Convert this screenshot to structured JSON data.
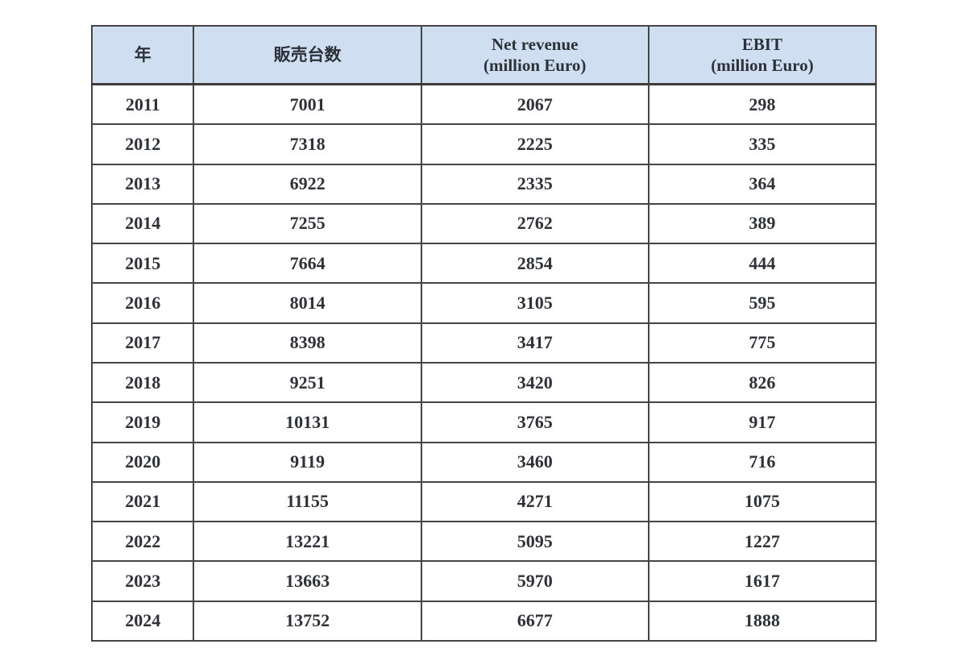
{
  "table": {
    "columns": [
      {
        "label": "年",
        "sub": ""
      },
      {
        "label": "販売台数",
        "sub": ""
      },
      {
        "label": "Net revenue",
        "sub": "(million Euro)"
      },
      {
        "label": "EBIT",
        "sub": "(million Euro)"
      }
    ],
    "rows": [
      {
        "cells": [
          "2011",
          "7001",
          "2067",
          "298"
        ]
      },
      {
        "cells": [
          "2012",
          "7318",
          "2225",
          "335"
        ]
      },
      {
        "cells": [
          "2013",
          "6922",
          "2335",
          "364"
        ]
      },
      {
        "cells": [
          "2014",
          "7255",
          "2762",
          "389"
        ]
      },
      {
        "cells": [
          "2015",
          "7664",
          "2854",
          "444"
        ]
      },
      {
        "cells": [
          "2016",
          "8014",
          "3105",
          "595"
        ]
      },
      {
        "cells": [
          "2017",
          "8398",
          "3417",
          "775"
        ]
      },
      {
        "cells": [
          "2018",
          "9251",
          "3420",
          "826"
        ]
      },
      {
        "cells": [
          "2019",
          "10131",
          "3765",
          "917"
        ]
      },
      {
        "cells": [
          "2020",
          "9119",
          "3460",
          "716"
        ]
      },
      {
        "cells": [
          "2021",
          "11155",
          "4271",
          "1075"
        ]
      },
      {
        "cells": [
          "2022",
          "13221",
          "5095",
          "1227"
        ]
      },
      {
        "cells": [
          "2023",
          "13663",
          "5970",
          "1617"
        ]
      },
      {
        "cells": [
          "2024",
          "13752",
          "6677",
          "1888"
        ]
      }
    ]
  },
  "colors": {
    "header_background": "#cfdef1",
    "border": "#454545",
    "text": "#2d3138"
  },
  "chart_data": {
    "type": "table",
    "title": "",
    "categories": [
      "2011",
      "2012",
      "2013",
      "2014",
      "2015",
      "2016",
      "2017",
      "2018",
      "2019",
      "2020",
      "2021",
      "2022",
      "2023",
      "2024"
    ],
    "series": [
      {
        "name": "販売台数",
        "values": [
          7001,
          7318,
          6922,
          7255,
          7664,
          8014,
          8398,
          9251,
          10131,
          9119,
          11155,
          13221,
          13663,
          13752
        ]
      },
      {
        "name": "Net revenue (million Euro)",
        "values": [
          2067,
          2225,
          2335,
          2762,
          2854,
          3105,
          3417,
          3420,
          3765,
          3460,
          4271,
          5095,
          5970,
          6677
        ]
      },
      {
        "name": "EBIT (million Euro)",
        "values": [
          298,
          335,
          364,
          389,
          444,
          595,
          775,
          826,
          917,
          716,
          1075,
          1227,
          1617,
          1888
        ]
      }
    ],
    "xlabel": "年",
    "legend_position": "header-row",
    "grid": true
  }
}
